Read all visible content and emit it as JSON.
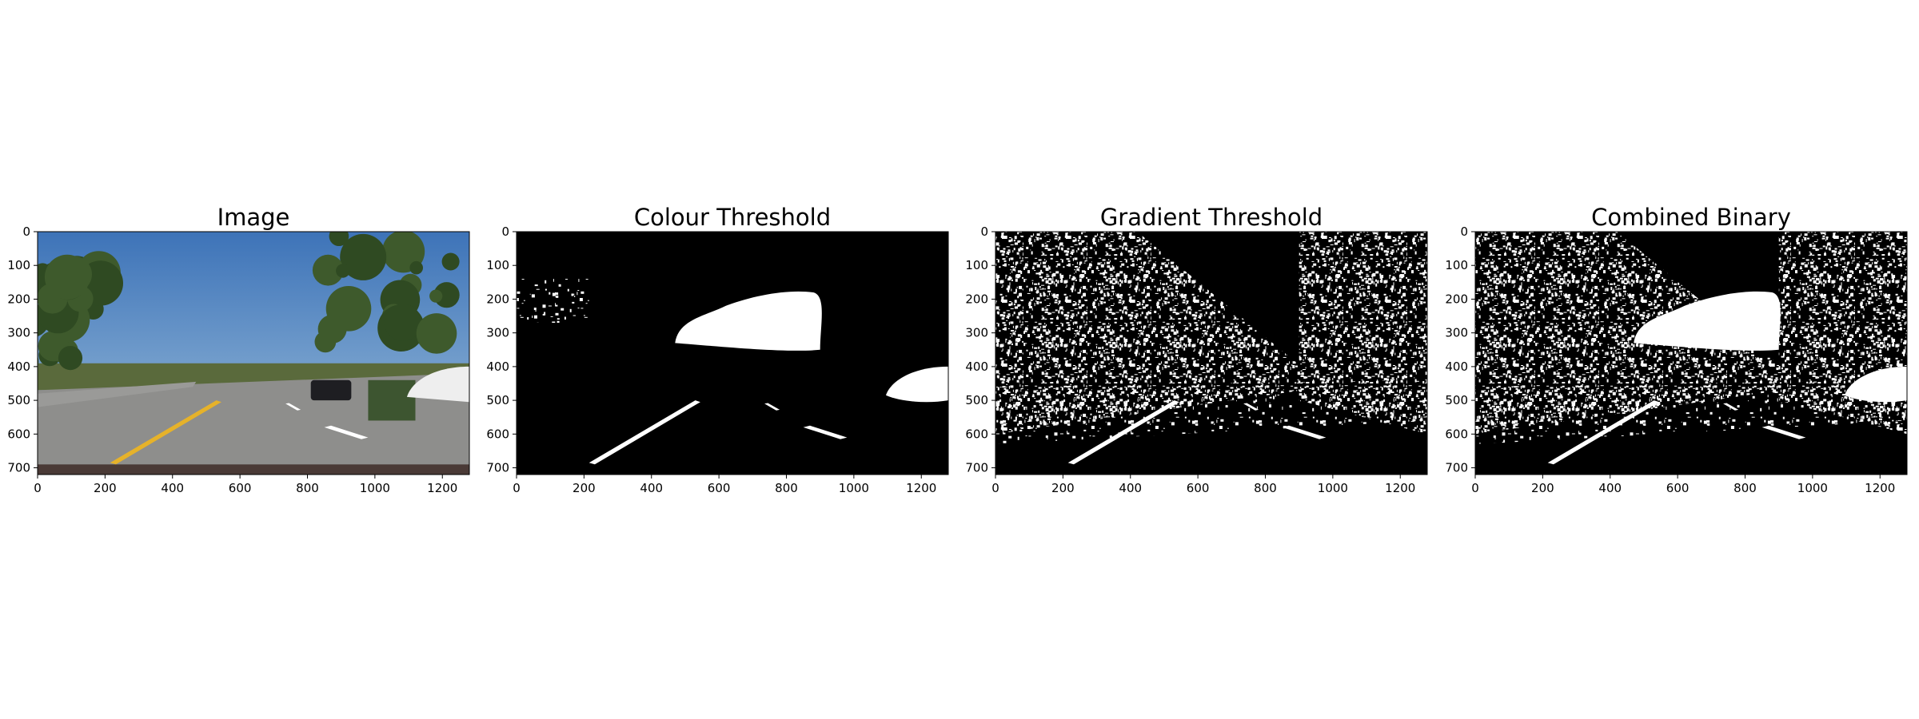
{
  "figure": {
    "background": "#ffffff"
  },
  "chart_data": [
    {
      "type": "image",
      "title": "Image",
      "xlabel": "",
      "ylabel": "",
      "xlim": [
        0,
        1280
      ],
      "ylim": [
        720,
        0
      ],
      "x_ticks": [
        0,
        200,
        400,
        600,
        800,
        1000,
        1200
      ],
      "y_ticks": [
        0,
        100,
        200,
        300,
        400,
        500,
        600,
        700
      ],
      "content": "road-scene-photo",
      "colors": {
        "sky": "#5f8fc0",
        "road": "#8e8e8c",
        "lane_line_left": "#e6b22a",
        "lane_line_right": "#ffffff"
      }
    },
    {
      "type": "image",
      "title": "Colour Threshold",
      "xlabel": "",
      "ylabel": "",
      "xlim": [
        0,
        1280
      ],
      "ylim": [
        720,
        0
      ],
      "x_ticks": [
        0,
        200,
        400,
        600,
        800,
        1000,
        1200
      ],
      "y_ticks": [
        0,
        100,
        200,
        300,
        400,
        500,
        600,
        700
      ],
      "content": "binary-mask",
      "colors": {
        "background": "#000000",
        "foreground": "#ffffff"
      }
    },
    {
      "type": "image",
      "title": "Gradient Threshold",
      "xlabel": "",
      "ylabel": "",
      "xlim": [
        0,
        1280
      ],
      "ylim": [
        720,
        0
      ],
      "x_ticks": [
        0,
        200,
        400,
        600,
        800,
        1000,
        1200
      ],
      "y_ticks": [
        0,
        100,
        200,
        300,
        400,
        500,
        600,
        700
      ],
      "content": "binary-mask",
      "colors": {
        "background": "#000000",
        "foreground": "#ffffff"
      }
    },
    {
      "type": "image",
      "title": "Combined Binary",
      "xlabel": "",
      "ylabel": "",
      "xlim": [
        0,
        1280
      ],
      "ylim": [
        720,
        0
      ],
      "x_ticks": [
        0,
        200,
        400,
        600,
        800,
        1000,
        1200
      ],
      "y_ticks": [
        0,
        100,
        200,
        300,
        400,
        500,
        600,
        700
      ],
      "content": "binary-mask",
      "colors": {
        "background": "#000000",
        "foreground": "#ffffff"
      }
    }
  ]
}
